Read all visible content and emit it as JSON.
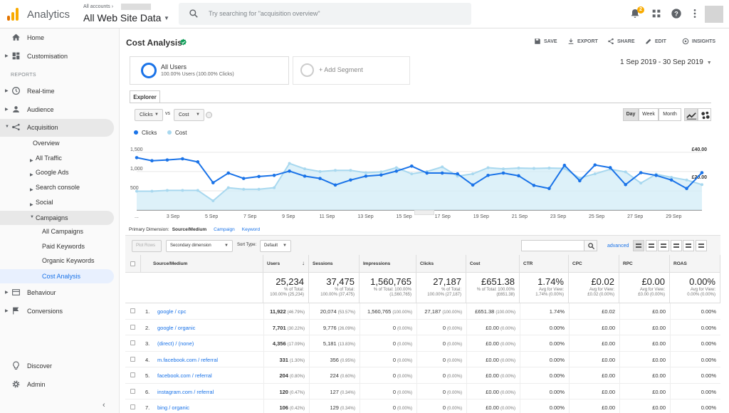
{
  "header": {
    "app_name": "Analytics",
    "account_label": "All accounts",
    "property": "All Web Site Data",
    "search_placeholder": "Try searching for \"acquisition overview\"",
    "notification_count": "2"
  },
  "sidebar": {
    "home": "Home",
    "customisation": "Customisation",
    "reports_label": "REPORTS",
    "realtime": "Real-time",
    "audience": "Audience",
    "acquisition": "Acquisition",
    "overview": "Overview",
    "all_traffic": "All Traffic",
    "google_ads": "Google Ads",
    "search_console": "Search console",
    "social": "Social",
    "campaigns": "Campaigns",
    "all_campaigns": "All Campaigns",
    "paid_keywords": "Paid Keywords",
    "organic_keywords": "Organic Keywords",
    "cost_analysis": "Cost Analysis",
    "behaviour": "Behaviour",
    "conversions": "Conversions",
    "discover": "Discover",
    "admin": "Admin"
  },
  "report": {
    "title": "Cost Analysis",
    "actions": {
      "save": "SAVE",
      "export": "EXPORT",
      "share": "SHARE",
      "edit": "EDIT",
      "insights": "INSIGHTS"
    },
    "segment_title": "All Users",
    "segment_sub": "100.00% Users (100.00% Clicks)",
    "add_segment": "+ Add Segment",
    "date_range": "1 Sep 2019 - 30 Sep 2019",
    "explorer_tab": "Explorer",
    "metric1": "Clicks",
    "vs": "vs",
    "metric2": "Cost",
    "gran_day": "Day",
    "gran_week": "Week",
    "gran_month": "Month"
  },
  "chart_data": {
    "type": "line",
    "title": "",
    "series": [
      {
        "name": "Clicks",
        "color": "#1a73e8",
        "values": [
          1360,
          1280,
          1300,
          1330,
          1250,
          710,
          960,
          820,
          870,
          900,
          1010,
          880,
          820,
          650,
          780,
          880,
          910,
          1010,
          1140,
          960,
          960,
          940,
          650,
          900,
          960,
          890,
          640,
          560,
          1160,
          760,
          1170,
          1100,
          660,
          970,
          900,
          780,
          560,
          970
        ]
      },
      {
        "name": "Cost",
        "color": "#a8d8ef",
        "values": [
          490,
          490,
          510,
          510,
          510,
          240,
          580,
          540,
          540,
          580,
          1210,
          1070,
          1000,
          1030,
          1030,
          970,
          990,
          1100,
          940,
          1000,
          1120,
          880,
          940,
          1100,
          1070,
          1090,
          1080,
          1090,
          1080,
          830,
          940,
          1060,
          990,
          700,
          930,
          850,
          780,
          660
        ]
      }
    ],
    "x_ticks": [
      "3 Sep",
      "5 Sep",
      "7 Sep",
      "9 Sep",
      "11 Sep",
      "13 Sep",
      "15 Sep",
      "17 Sep",
      "19 Sep",
      "21 Sep",
      "23 Sep",
      "25 Sep",
      "27 Sep",
      "29 Sep"
    ],
    "x_start_label": "...",
    "y_left_ticks": [
      "1,500",
      "1,000",
      "500"
    ],
    "y_left_range": [
      0,
      1700
    ],
    "y_right_ticks": [
      "£40.00",
      "£20.00"
    ],
    "legend": "top-left",
    "grid": true
  },
  "primary_dimension": {
    "label": "Primary Dimension:",
    "selected": "Source/Medium",
    "options": [
      "Campaign",
      "Keyword"
    ]
  },
  "table_toolbar": {
    "plot_rows": "Plot Rows",
    "secondary_dimension": "Secondary dimension",
    "sort_type_label": "Sort Type:",
    "sort_type": "Default",
    "advanced": "advanced"
  },
  "table": {
    "columns": [
      "Source/Medium",
      "Users",
      "Sessions",
      "Impressions",
      "Clicks",
      "Cost",
      "CTR",
      "CPC",
      "RPC",
      "ROAS"
    ],
    "totals": [
      {
        "value": "25,234",
        "sub1": "% of Total:",
        "sub2": "100.00% (25,234)"
      },
      {
        "value": "37,475",
        "sub1": "% of Total:",
        "sub2": "100.00% (37,475)"
      },
      {
        "value": "1,560,765",
        "sub1": "% of Total: 100.00%",
        "sub2": "(1,560,765)"
      },
      {
        "value": "27,187",
        "sub1": "% of Total:",
        "sub2": "100.00% (27,187)"
      },
      {
        "value": "£651.38",
        "sub1": "% of Total: 100.00%",
        "sub2": "(£651.38)"
      },
      {
        "value": "1.74%",
        "sub1": "Avg for View:",
        "sub2": "1.74% (0.00%)"
      },
      {
        "value": "£0.02",
        "sub1": "Avg for View:",
        "sub2": "£0.02 (0.00%)"
      },
      {
        "value": "£0.00",
        "sub1": "Avg for View:",
        "sub2": "£0.00 (0.00%)"
      },
      {
        "value": "0.00%",
        "sub1": "Avg for View:",
        "sub2": "0.00% (0.00%)"
      }
    ],
    "rows": [
      {
        "n": "1.",
        "src": "google / cpc",
        "users": "11,922",
        "users_pct": "(46.79%)",
        "sessions": "20,074",
        "sessions_pct": "(53.57%)",
        "impr": "1,560,765",
        "impr_pct": "(100.00%)",
        "clicks": "27,187",
        "clicks_pct": "(100.00%)",
        "cost": "£651.38",
        "cost_pct": "(100.00%)",
        "ctr": "1.74%",
        "cpc": "£0.02",
        "rpc": "£0.00",
        "roas": "0.00%"
      },
      {
        "n": "2.",
        "src": "google / organic",
        "users": "7,701",
        "users_pct": "(30.22%)",
        "sessions": "9,776",
        "sessions_pct": "(26.09%)",
        "impr": "0",
        "impr_pct": "(0.00%)",
        "clicks": "0",
        "clicks_pct": "(0.00%)",
        "cost": "£0.00",
        "cost_pct": "(0.00%)",
        "ctr": "0.00%",
        "cpc": "£0.00",
        "rpc": "£0.00",
        "roas": "0.00%"
      },
      {
        "n": "3.",
        "src": "(direct) / (none)",
        "users": "4,356",
        "users_pct": "(17.09%)",
        "sessions": "5,181",
        "sessions_pct": "(13.83%)",
        "impr": "0",
        "impr_pct": "(0.00%)",
        "clicks": "0",
        "clicks_pct": "(0.00%)",
        "cost": "£0.00",
        "cost_pct": "(0.00%)",
        "ctr": "0.00%",
        "cpc": "£0.00",
        "rpc": "£0.00",
        "roas": "0.00%"
      },
      {
        "n": "4.",
        "src": "m.facebook.com / referral",
        "users": "331",
        "users_pct": "(1.30%)",
        "sessions": "356",
        "sessions_pct": "(0.95%)",
        "impr": "0",
        "impr_pct": "(0.00%)",
        "clicks": "0",
        "clicks_pct": "(0.00%)",
        "cost": "£0.00",
        "cost_pct": "(0.00%)",
        "ctr": "0.00%",
        "cpc": "£0.00",
        "rpc": "£0.00",
        "roas": "0.00%"
      },
      {
        "n": "5.",
        "src": "facebook.com / referral",
        "users": "204",
        "users_pct": "(0.80%)",
        "sessions": "224",
        "sessions_pct": "(0.60%)",
        "impr": "0",
        "impr_pct": "(0.00%)",
        "clicks": "0",
        "clicks_pct": "(0.00%)",
        "cost": "£0.00",
        "cost_pct": "(0.00%)",
        "ctr": "0.00%",
        "cpc": "£0.00",
        "rpc": "£0.00",
        "roas": "0.00%"
      },
      {
        "n": "6.",
        "src": "instagram.com / referral",
        "users": "120",
        "users_pct": "(0.47%)",
        "sessions": "127",
        "sessions_pct": "(0.34%)",
        "impr": "0",
        "impr_pct": "(0.00%)",
        "clicks": "0",
        "clicks_pct": "(0.00%)",
        "cost": "£0.00",
        "cost_pct": "(0.00%)",
        "ctr": "0.00%",
        "cpc": "£0.00",
        "rpc": "£0.00",
        "roas": "0.00%"
      },
      {
        "n": "7.",
        "src": "bing / organic",
        "users": "106",
        "users_pct": "(0.42%)",
        "sessions": "129",
        "sessions_pct": "(0.34%)",
        "impr": "0",
        "impr_pct": "(0.00%)",
        "clicks": "0",
        "clicks_pct": "(0.00%)",
        "cost": "£0.00",
        "cost_pct": "(0.00%)",
        "ctr": "0.00%",
        "cpc": "£0.00",
        "rpc": "£0.00",
        "roas": "0.00%"
      }
    ]
  }
}
